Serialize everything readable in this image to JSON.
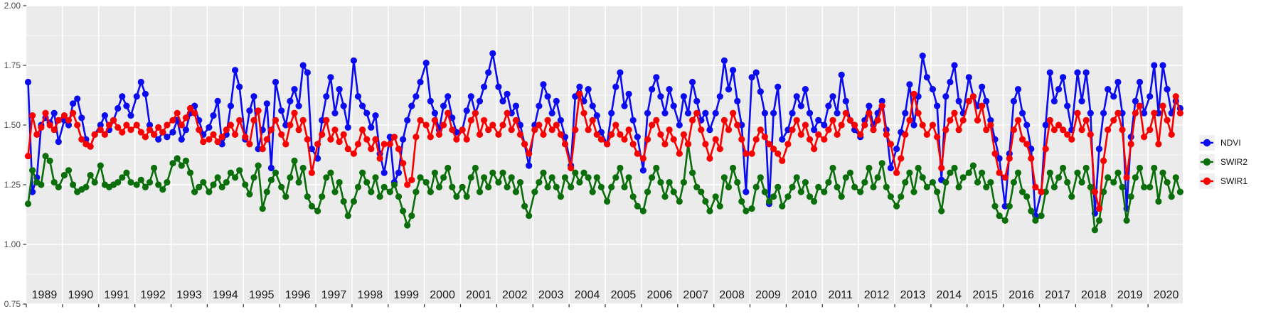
{
  "chart_data": {
    "type": "line",
    "title": "",
    "xlabel": "",
    "ylabel": "",
    "marker": "point",
    "grid": {
      "panel_bg": "#EBEBEB",
      "major_color": "#FFFFFF",
      "minor_color": "#FFFFFF",
      "grid_on": true
    },
    "x_axis": {
      "start_year": 1989,
      "end_year": 2020,
      "extent_fraction_of_last_year": 0.96,
      "tick_labels": [
        "1989",
        "1990",
        "1991",
        "1992",
        "1993",
        "1994",
        "1995",
        "1996",
        "1997",
        "1998",
        "1999",
        "2000",
        "2001",
        "2002",
        "2003",
        "2004",
        "2005",
        "2006",
        "2007",
        "2008",
        "2009",
        "2010",
        "2011",
        "2012",
        "2013",
        "2014",
        "2015",
        "2016",
        "2017",
        "2018",
        "2019",
        "2020"
      ],
      "label_position": "inside-bottom"
    },
    "y_axis": {
      "range": [
        0.75,
        2.0
      ],
      "tick_values": [
        2.0,
        1.75,
        1.5,
        1.25,
        1.0,
        0.75
      ],
      "tick_labels": [
        "2.00",
        "1.75",
        "1.50",
        "1.25",
        "1.00",
        "0.75"
      ],
      "minor_tick_values": [
        1.875,
        1.625,
        1.375,
        1.125,
        0.875
      ]
    },
    "legend": {
      "position": "right",
      "items": [
        {
          "label": "NDVI",
          "color": "#0B0BF0"
        },
        {
          "label": "SWIR2",
          "color": "#0A6E0A"
        },
        {
          "label": "SWIR1",
          "color": "#F80000"
        }
      ]
    },
    "intra_year_offsets": [
      0.05,
      0.17,
      0.29,
      0.41,
      0.53,
      0.65,
      0.77,
      0.89
    ],
    "series": [
      {
        "name": "NDVI",
        "color": "#0B0BF0",
        "values_by_year": [
          [
            1.68,
            1.22,
            1.28,
            1.5,
            1.53,
            1.51,
            1.55,
            1.43
          ],
          [
            1.52,
            1.5,
            1.59,
            1.61,
            1.53,
            1.44,
            1.41,
            1.46
          ],
          [
            1.5,
            1.54,
            1.48,
            1.52,
            1.57,
            1.62,
            1.58,
            1.54
          ],
          [
            1.62,
            1.68,
            1.63,
            1.5,
            1.46,
            1.44,
            1.47,
            1.45
          ],
          [
            1.47,
            1.52,
            1.44,
            1.48,
            1.55,
            1.58,
            1.52,
            1.46
          ],
          [
            1.49,
            1.54,
            1.6,
            1.42,
            1.46,
            1.58,
            1.73,
            1.66
          ],
          [
            1.44,
            1.56,
            1.62,
            1.4,
            1.48,
            1.59,
            1.32,
            1.68
          ],
          [
            1.56,
            1.5,
            1.6,
            1.65,
            1.58,
            1.75,
            1.72,
            1.4
          ],
          [
            1.36,
            1.52,
            1.62,
            1.7,
            1.55,
            1.65,
            1.58,
            1.49
          ],
          [
            1.77,
            1.62,
            1.58,
            1.55,
            1.49,
            1.54,
            1.38,
            1.3
          ],
          [
            1.45,
            1.26,
            1.3,
            1.44,
            1.52,
            1.58,
            1.62,
            1.68
          ],
          [
            1.76,
            1.6,
            1.55,
            1.48,
            1.58,
            1.62,
            1.53,
            1.47
          ],
          [
            1.48,
            1.56,
            1.62,
            1.55,
            1.6,
            1.66,
            1.72,
            1.8
          ],
          [
            1.66,
            1.6,
            1.63,
            1.55,
            1.58,
            1.5,
            1.42,
            1.33
          ],
          [
            1.5,
            1.58,
            1.67,
            1.62,
            1.55,
            1.6,
            1.52,
            1.45
          ],
          [
            1.33,
            1.62,
            1.66,
            1.6,
            1.65,
            1.58,
            1.54,
            1.47
          ],
          [
            1.42,
            1.55,
            1.66,
            1.72,
            1.58,
            1.63,
            1.52,
            1.45
          ],
          [
            1.31,
            1.55,
            1.65,
            1.7,
            1.62,
            1.55,
            1.65,
            1.58
          ],
          [
            1.5,
            1.62,
            1.55,
            1.68,
            1.6,
            1.52,
            1.55,
            1.48
          ],
          [
            1.55,
            1.62,
            1.77,
            1.65,
            1.73,
            1.6,
            1.5,
            1.22
          ],
          [
            1.7,
            1.72,
            1.64,
            1.55,
            1.17,
            1.55,
            1.66,
            1.44
          ],
          [
            1.48,
            1.55,
            1.62,
            1.58,
            1.65,
            1.55,
            1.48,
            1.52
          ],
          [
            1.5,
            1.58,
            1.62,
            1.55,
            1.71,
            1.6,
            1.52,
            1.48
          ],
          [
            1.45,
            1.52,
            1.58,
            1.5,
            1.55,
            1.6,
            1.48,
            1.32
          ],
          [
            1.4,
            1.47,
            1.55,
            1.67,
            1.5,
            1.62,
            1.79,
            1.7
          ],
          [
            1.65,
            1.58,
            1.27,
            1.62,
            1.68,
            1.75,
            1.6,
            1.55
          ],
          [
            1.7,
            1.62,
            1.58,
            1.66,
            1.6,
            1.52,
            1.44,
            1.36
          ],
          [
            1.16,
            1.38,
            1.6,
            1.65,
            1.55,
            1.5,
            1.4,
            1.12
          ],
          [
            1.22,
            1.5,
            1.72,
            1.6,
            1.65,
            1.7,
            1.58,
            1.48
          ],
          [
            1.72,
            1.6,
            1.72,
            1.55,
            1.13,
            1.4,
            1.55,
            1.65
          ],
          [
            1.62,
            1.68,
            1.55,
            1.15,
            1.45,
            1.6,
            1.68,
            1.55
          ],
          [
            1.62,
            1.75,
            1.55,
            1.75,
            1.65,
            1.55,
            1.6,
            1.57
          ]
        ]
      },
      {
        "name": "SWIR2",
        "color": "#0A6E0A",
        "values_by_year": [
          [
            1.17,
            1.31,
            1.26,
            1.25,
            1.37,
            1.35,
            1.26,
            1.24
          ],
          [
            1.29,
            1.31,
            1.25,
            1.22,
            1.23,
            1.24,
            1.29,
            1.26
          ],
          [
            1.33,
            1.25,
            1.24,
            1.25,
            1.26,
            1.28,
            1.3,
            1.26
          ],
          [
            1.25,
            1.27,
            1.24,
            1.26,
            1.32,
            1.25,
            1.23,
            1.26
          ],
          [
            1.34,
            1.36,
            1.33,
            1.35,
            1.3,
            1.22,
            1.24,
            1.26
          ],
          [
            1.22,
            1.25,
            1.28,
            1.24,
            1.26,
            1.3,
            1.28,
            1.31
          ],
          [
            1.25,
            1.21,
            1.28,
            1.33,
            1.15,
            1.22,
            1.27,
            1.3
          ],
          [
            1.24,
            1.2,
            1.28,
            1.35,
            1.26,
            1.32,
            1.2,
            1.16
          ],
          [
            1.14,
            1.2,
            1.28,
            1.3,
            1.22,
            1.26,
            1.18,
            1.12
          ],
          [
            1.18,
            1.24,
            1.3,
            1.26,
            1.22,
            1.28,
            1.2,
            1.24
          ],
          [
            1.22,
            1.25,
            1.2,
            1.14,
            1.08,
            1.12,
            1.22,
            1.28
          ],
          [
            1.26,
            1.22,
            1.3,
            1.24,
            1.28,
            1.32,
            1.24,
            1.2
          ],
          [
            1.24,
            1.2,
            1.28,
            1.32,
            1.22,
            1.28,
            1.24,
            1.3
          ],
          [
            1.26,
            1.3,
            1.24,
            1.28,
            1.22,
            1.26,
            1.16,
            1.12
          ],
          [
            1.22,
            1.26,
            1.3,
            1.24,
            1.28,
            1.24,
            1.2,
            1.28
          ],
          [
            1.24,
            1.3,
            1.26,
            1.3,
            1.28,
            1.22,
            1.28,
            1.24
          ],
          [
            1.18,
            1.24,
            1.28,
            1.32,
            1.24,
            1.28,
            1.2,
            1.16
          ],
          [
            1.14,
            1.22,
            1.28,
            1.32,
            1.26,
            1.2,
            1.26,
            1.22
          ],
          [
            1.18,
            1.26,
            1.42,
            1.3,
            1.24,
            1.22,
            1.18,
            1.14
          ],
          [
            1.2,
            1.16,
            1.28,
            1.24,
            1.32,
            1.26,
            1.18,
            1.14
          ],
          [
            1.15,
            1.24,
            1.28,
            1.22,
            1.18,
            1.2,
            1.24,
            1.16
          ],
          [
            1.2,
            1.24,
            1.28,
            1.22,
            1.26,
            1.2,
            1.18,
            1.24
          ],
          [
            1.22,
            1.26,
            1.32,
            1.24,
            1.2,
            1.28,
            1.3,
            1.24
          ],
          [
            1.22,
            1.26,
            1.32,
            1.24,
            1.28,
            1.34,
            1.24,
            1.2
          ],
          [
            1.16,
            1.2,
            1.26,
            1.3,
            1.22,
            1.32,
            1.28,
            1.24
          ],
          [
            1.26,
            1.22,
            1.14,
            1.26,
            1.3,
            1.32,
            1.24,
            1.28
          ],
          [
            1.3,
            1.33,
            1.26,
            1.3,
            1.24,
            1.26,
            1.16,
            1.12
          ],
          [
            1.1,
            1.16,
            1.26,
            1.3,
            1.22,
            1.2,
            1.14,
            1.1
          ],
          [
            1.12,
            1.22,
            1.3,
            1.24,
            1.28,
            1.32,
            1.26,
            1.2
          ],
          [
            1.3,
            1.26,
            1.32,
            1.24,
            1.06,
            1.1,
            1.22,
            1.28
          ],
          [
            1.26,
            1.3,
            1.24,
            1.1,
            1.2,
            1.28,
            1.32,
            1.24
          ],
          [
            1.24,
            1.32,
            1.18,
            1.3,
            1.26,
            1.2,
            1.28,
            1.22
          ]
        ]
      },
      {
        "name": "SWIR1",
        "color": "#F80000",
        "values_by_year": [
          [
            1.37,
            1.54,
            1.46,
            1.49,
            1.55,
            1.5,
            1.48,
            1.52
          ],
          [
            1.54,
            1.52,
            1.55,
            1.5,
            1.44,
            1.42,
            1.41,
            1.46
          ],
          [
            1.48,
            1.46,
            1.5,
            1.52,
            1.49,
            1.47,
            1.5,
            1.48
          ],
          [
            1.5,
            1.47,
            1.45,
            1.48,
            1.46,
            1.49,
            1.47,
            1.5
          ],
          [
            1.52,
            1.55,
            1.5,
            1.53,
            1.57,
            1.55,
            1.48,
            1.43
          ],
          [
            1.44,
            1.46,
            1.43,
            1.45,
            1.48,
            1.5,
            1.46,
            1.52
          ],
          [
            1.45,
            1.42,
            1.52,
            1.56,
            1.4,
            1.44,
            1.48,
            1.52
          ],
          [
            1.46,
            1.42,
            1.5,
            1.55,
            1.48,
            1.52,
            1.44,
            1.3
          ],
          [
            1.42,
            1.46,
            1.52,
            1.44,
            1.48,
            1.43,
            1.46,
            1.4
          ],
          [
            1.38,
            1.42,
            1.48,
            1.44,
            1.4,
            1.44,
            1.36,
            1.42
          ],
          [
            1.42,
            1.45,
            1.4,
            1.34,
            1.25,
            1.27,
            1.45,
            1.52
          ],
          [
            1.5,
            1.45,
            1.52,
            1.46,
            1.5,
            1.55,
            1.48,
            1.44
          ],
          [
            1.48,
            1.44,
            1.52,
            1.55,
            1.46,
            1.52,
            1.48,
            1.5
          ],
          [
            1.46,
            1.5,
            1.55,
            1.48,
            1.52,
            1.46,
            1.42,
            1.38
          ],
          [
            1.48,
            1.5,
            1.46,
            1.52,
            1.48,
            1.5,
            1.46,
            1.42
          ],
          [
            1.32,
            1.48,
            1.63,
            1.55,
            1.48,
            1.52,
            1.46,
            1.44
          ],
          [
            1.42,
            1.46,
            1.5,
            1.46,
            1.44,
            1.48,
            1.42,
            1.38
          ],
          [
            1.36,
            1.44,
            1.5,
            1.52,
            1.46,
            1.42,
            1.48,
            1.44
          ],
          [
            1.38,
            1.46,
            1.42,
            1.52,
            1.55,
            1.48,
            1.42,
            1.36
          ],
          [
            1.44,
            1.4,
            1.52,
            1.48,
            1.55,
            1.5,
            1.44,
            1.38
          ],
          [
            1.38,
            1.44,
            1.48,
            1.45,
            1.42,
            1.4,
            1.38,
            1.35
          ],
          [
            1.42,
            1.48,
            1.52,
            1.46,
            1.5,
            1.44,
            1.4,
            1.46
          ],
          [
            1.44,
            1.48,
            1.52,
            1.46,
            1.5,
            1.55,
            1.52,
            1.5
          ],
          [
            1.46,
            1.5,
            1.55,
            1.48,
            1.52,
            1.58,
            1.46,
            1.42
          ],
          [
            1.3,
            1.36,
            1.46,
            1.52,
            1.63,
            1.55,
            1.5,
            1.46
          ],
          [
            1.5,
            1.45,
            1.32,
            1.48,
            1.52,
            1.55,
            1.48,
            1.52
          ],
          [
            1.6,
            1.62,
            1.52,
            1.58,
            1.48,
            1.5,
            1.38,
            1.3
          ],
          [
            1.28,
            1.36,
            1.48,
            1.52,
            1.44,
            1.42,
            1.36,
            1.24
          ],
          [
            1.22,
            1.4,
            1.52,
            1.48,
            1.5,
            1.48,
            1.46,
            1.44
          ],
          [
            1.55,
            1.48,
            1.52,
            1.46,
            1.22,
            1.15,
            1.35,
            1.48
          ],
          [
            1.52,
            1.55,
            1.48,
            1.28,
            1.42,
            1.55,
            1.58,
            1.45
          ],
          [
            1.48,
            1.55,
            1.42,
            1.58,
            1.52,
            1.46,
            1.62,
            1.55
          ]
        ]
      }
    ]
  }
}
